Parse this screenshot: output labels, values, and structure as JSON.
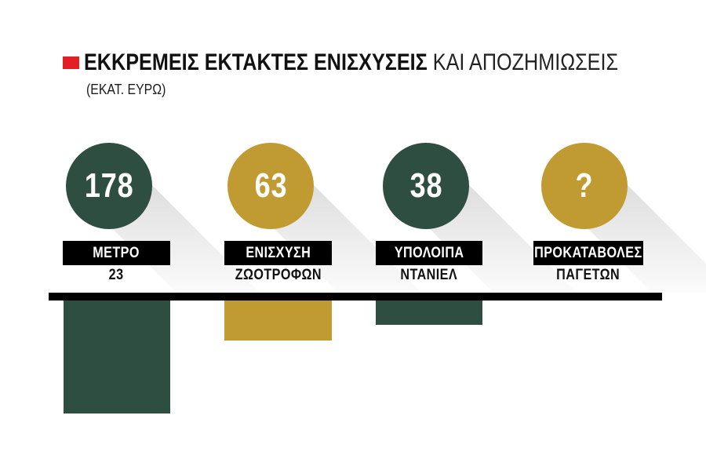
{
  "header": {
    "title_strong": "ΕΚΚΡΕΜΕΙΣ ΕΚΤΑΚΤΕΣ ΕΝΙΣΧΥΣΕΙΣ",
    "title_light": " ΚΑΙ ΑΠΟΖΗΜΙΩΣΕΙΣ",
    "subtitle": "(ΕΚΑΤ. ΕΥΡΩ)"
  },
  "colors": {
    "green": "#2F4E42",
    "gold": "#C09B31",
    "red": "#E31E24",
    "black": "#000000",
    "shadow_gray": "#E8E8E8"
  },
  "items": [
    {
      "value": 178,
      "value_label": "178",
      "color": "green",
      "label": "ΜΕΤΡΟ",
      "sublabel": "23"
    },
    {
      "value": 63,
      "value_label": "63",
      "color": "gold",
      "label": "ΕΝΙΣΧΥΣΗ",
      "sublabel": "ΖΩΟΤΡΟΦΩΝ"
    },
    {
      "value": 38,
      "value_label": "38",
      "color": "green",
      "label": "ΥΠΟΛΟΙΠΑ",
      "sublabel": "ΝΤΑΝΙΕΛ"
    },
    {
      "value": null,
      "value_label": "?",
      "color": "gold",
      "label": "ΠΡΟΚΑΤΑΒΟΛΕΣ",
      "sublabel": "ΠΑΓΕΤΩΝ"
    }
  ],
  "chart_data": {
    "type": "bar",
    "title": "ΕΚΚΡΕΜΕΙΣ ΕΚΤΑΚΤΕΣ ΕΝΙΣΧΥΣΕΙΣ ΚΑΙ ΑΠΟΖΗΜΙΩΣΕΙΣ",
    "subtitle": "(ΕΚΑΤ. ΕΥΡΩ)",
    "unit": "ΕΚΑΤ. ΕΥΡΩ",
    "categories": [
      "ΜΕΤΡΟ 23",
      "ΕΝΙΣΧΥΣΗ ΖΩΟΤΡΟΦΩΝ",
      "ΥΠΟΛΟΙΠΑ ΝΤΑΝΙΕΛ",
      "ΠΡΟΚΑΤΑΒΟΛΕΣ ΠΑΓΕΤΩΝ"
    ],
    "values": [
      178,
      63,
      38,
      null
    ],
    "value_labels": [
      "178",
      "63",
      "38",
      "?"
    ],
    "bar_colors": [
      "green",
      "gold",
      "green",
      "gold"
    ],
    "orientation": "bars-hang-below-baseline",
    "grid": false,
    "legend": false,
    "xlabel": "",
    "ylabel": ""
  }
}
